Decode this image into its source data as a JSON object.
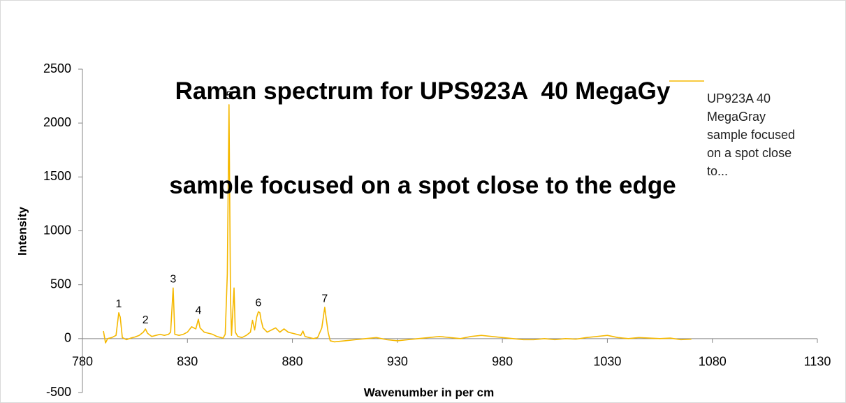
{
  "chart_data": {
    "type": "line",
    "title": [
      "Raman spectrum for UPS923A  40 MegaGy",
      "sample focused on a spot close to the edge"
    ],
    "x_label": "Wavenumber in per cm",
    "y_label": "Intensity",
    "xlim": [
      780,
      1130
    ],
    "xticks": [
      780,
      830,
      880,
      930,
      980,
      1030,
      1080,
      1130
    ],
    "ylim": [
      -500,
      2500
    ],
    "yticks": [
      -500,
      0,
      500,
      1000,
      1500,
      2000,
      2500
    ],
    "legend": "right",
    "x": [
      790,
      791,
      792,
      794,
      796,
      797.3,
      798,
      799,
      801,
      803,
      805,
      807,
      809,
      810,
      811,
      813,
      815,
      817,
      819,
      821,
      822,
      823.2,
      824,
      826,
      828,
      830,
      832,
      834,
      835.2,
      836,
      838,
      840,
      842,
      844,
      846,
      847,
      848,
      849,
      849.8,
      850.5,
      851,
      852.2,
      852.8,
      854,
      856,
      858,
      860,
      861,
      862,
      863,
      863.8,
      864.5,
      865,
      866,
      868,
      870,
      872,
      874,
      876,
      878,
      880,
      882,
      884,
      885,
      886,
      888,
      890,
      892,
      894,
      895.4,
      896,
      897,
      898,
      900,
      905,
      910,
      915,
      920,
      925,
      930,
      935,
      940,
      945,
      950,
      955,
      960,
      965,
      970,
      975,
      980,
      985,
      990,
      995,
      1000,
      1005,
      1010,
      1015,
      1020,
      1025,
      1030,
      1035,
      1040,
      1045,
      1050,
      1055,
      1060,
      1065,
      1070
    ],
    "series": [
      {
        "name": "UP923A 40 MegaGray sample focused on a spot close to...",
        "color": "#f5b800",
        "values": [
          70,
          -40,
          0,
          10,
          30,
          240,
          200,
          10,
          -10,
          5,
          15,
          30,
          60,
          90,
          50,
          20,
          30,
          40,
          30,
          40,
          60,
          470,
          40,
          30,
          40,
          60,
          110,
          90,
          180,
          100,
          60,
          50,
          40,
          20,
          10,
          5,
          40,
          600,
          2170,
          400,
          30,
          470,
          60,
          20,
          10,
          30,
          60,
          170,
          80,
          200,
          250,
          240,
          180,
          100,
          60,
          80,
          100,
          60,
          90,
          60,
          50,
          40,
          30,
          70,
          20,
          10,
          0,
          10,
          100,
          290,
          200,
          60,
          -20,
          -30,
          -20,
          -10,
          0,
          10,
          -10,
          -20,
          -10,
          0,
          10,
          20,
          10,
          0,
          20,
          30,
          20,
          10,
          0,
          -10,
          -10,
          0,
          -10,
          0,
          -5,
          10,
          20,
          30,
          10,
          0,
          10,
          5,
          0,
          5,
          -10,
          -5
        ]
      }
    ],
    "annotations": [
      {
        "text": "1",
        "x": 797.3,
        "y": 240
      },
      {
        "text": "2",
        "x": 810,
        "y": 90
      },
      {
        "text": "3",
        "x": 823.2,
        "y": 470
      },
      {
        "text": "4",
        "x": 835.2,
        "y": 180
      },
      {
        "text": "5",
        "x": 849.8,
        "y": 2170
      },
      {
        "text": "6",
        "x": 863.8,
        "y": 250
      },
      {
        "text": "7",
        "x": 895.4,
        "y": 290
      }
    ]
  }
}
